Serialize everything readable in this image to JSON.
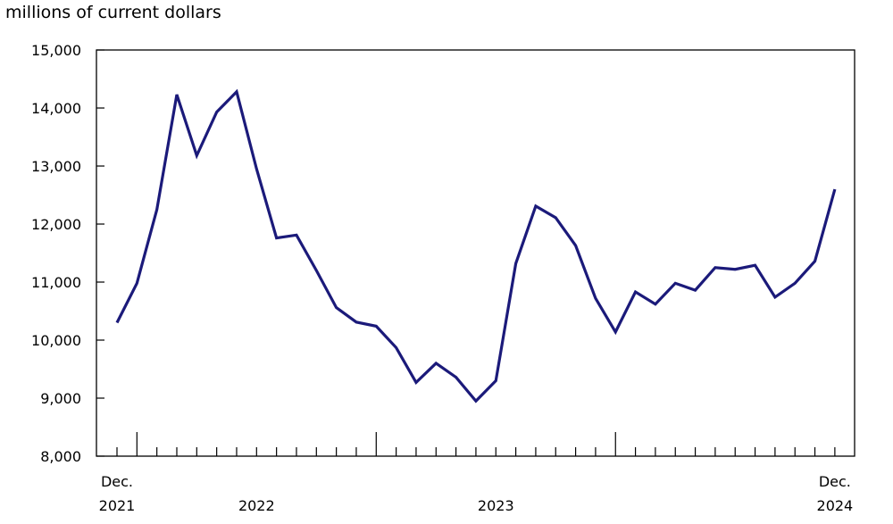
{
  "chart_data": {
    "type": "line",
    "unit_label": "millions of current dollars",
    "ylim": [
      8000,
      15000
    ],
    "y_ticks": [
      "15,000",
      "14,000",
      "13,000",
      "12,000",
      "11,000",
      "10,000",
      "9,000",
      "8,000"
    ],
    "y_tick_values": [
      15000,
      14000,
      13000,
      12000,
      11000,
      10000,
      9000,
      8000
    ],
    "x_labels": [
      {
        "month": "2021-12",
        "line1": "Dec.",
        "line2": "2021"
      },
      {
        "month": "2022-07",
        "line1": "",
        "line2": "2022"
      },
      {
        "month": "2023-07",
        "line1": "",
        "line2": "2023"
      },
      {
        "month": "2024-12",
        "line1": "Dec.",
        "line2": "2024"
      }
    ],
    "line_color": "#1b1a7a",
    "series": [
      {
        "x": [
          "2021-12",
          "2022-01",
          "2022-02",
          "2022-03",
          "2022-04",
          "2022-05",
          "2022-06",
          "2022-07",
          "2022-08",
          "2022-09",
          "2022-10",
          "2022-11",
          "2022-12",
          "2023-01",
          "2023-02",
          "2023-03",
          "2023-04",
          "2023-05",
          "2023-06",
          "2023-07",
          "2023-08",
          "2023-09",
          "2023-10",
          "2023-11",
          "2023-12",
          "2024-01",
          "2024-02",
          "2024-03",
          "2024-04",
          "2024-05",
          "2024-06",
          "2024-07",
          "2024-08",
          "2024-09",
          "2024-10",
          "2024-11",
          "2024-12"
        ],
        "values": [
          10300,
          10980,
          12250,
          14230,
          13180,
          13930,
          14280,
          12950,
          11760,
          11810,
          11200,
          10560,
          10310,
          10240,
          9870,
          9270,
          9600,
          9360,
          8950,
          9300,
          11320,
          12310,
          12110,
          11630,
          10720,
          10140,
          10830,
          10620,
          10980,
          10860,
          11250,
          11220,
          11290,
          10740,
          10980,
          11360,
          12600
        ]
      }
    ]
  }
}
